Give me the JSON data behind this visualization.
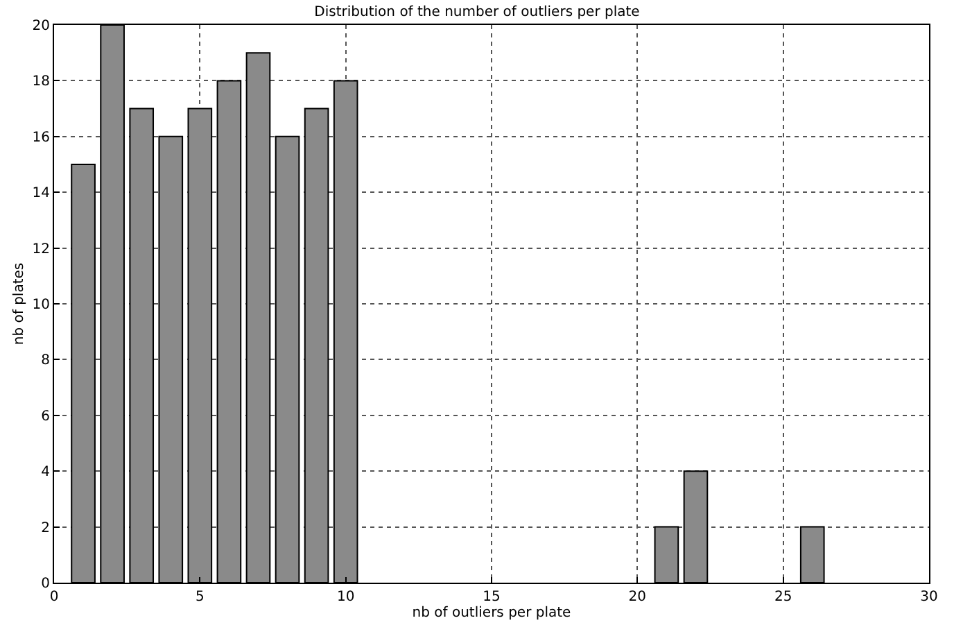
{
  "chart_data": {
    "type": "bar",
    "title": "Distribution of the number of outliers per plate",
    "xlabel": "nb of outliers per plate",
    "ylabel": "nb of plates",
    "x": [
      1,
      2,
      3,
      4,
      5,
      6,
      7,
      8,
      9,
      10,
      21,
      22,
      26
    ],
    "values": [
      15,
      20,
      17,
      16,
      17,
      18,
      19,
      16,
      17,
      18,
      2,
      4,
      2
    ],
    "color": "#8a8a8a",
    "xlim": [
      0,
      30
    ],
    "xticks": [
      0,
      5,
      10,
      15,
      20,
      25,
      30
    ],
    "ylim": [
      0,
      20
    ],
    "yticks": [
      0,
      2,
      4,
      6,
      8,
      10,
      12,
      14,
      16,
      18,
      20
    ],
    "grid": true,
    "line_style": "dotted"
  }
}
